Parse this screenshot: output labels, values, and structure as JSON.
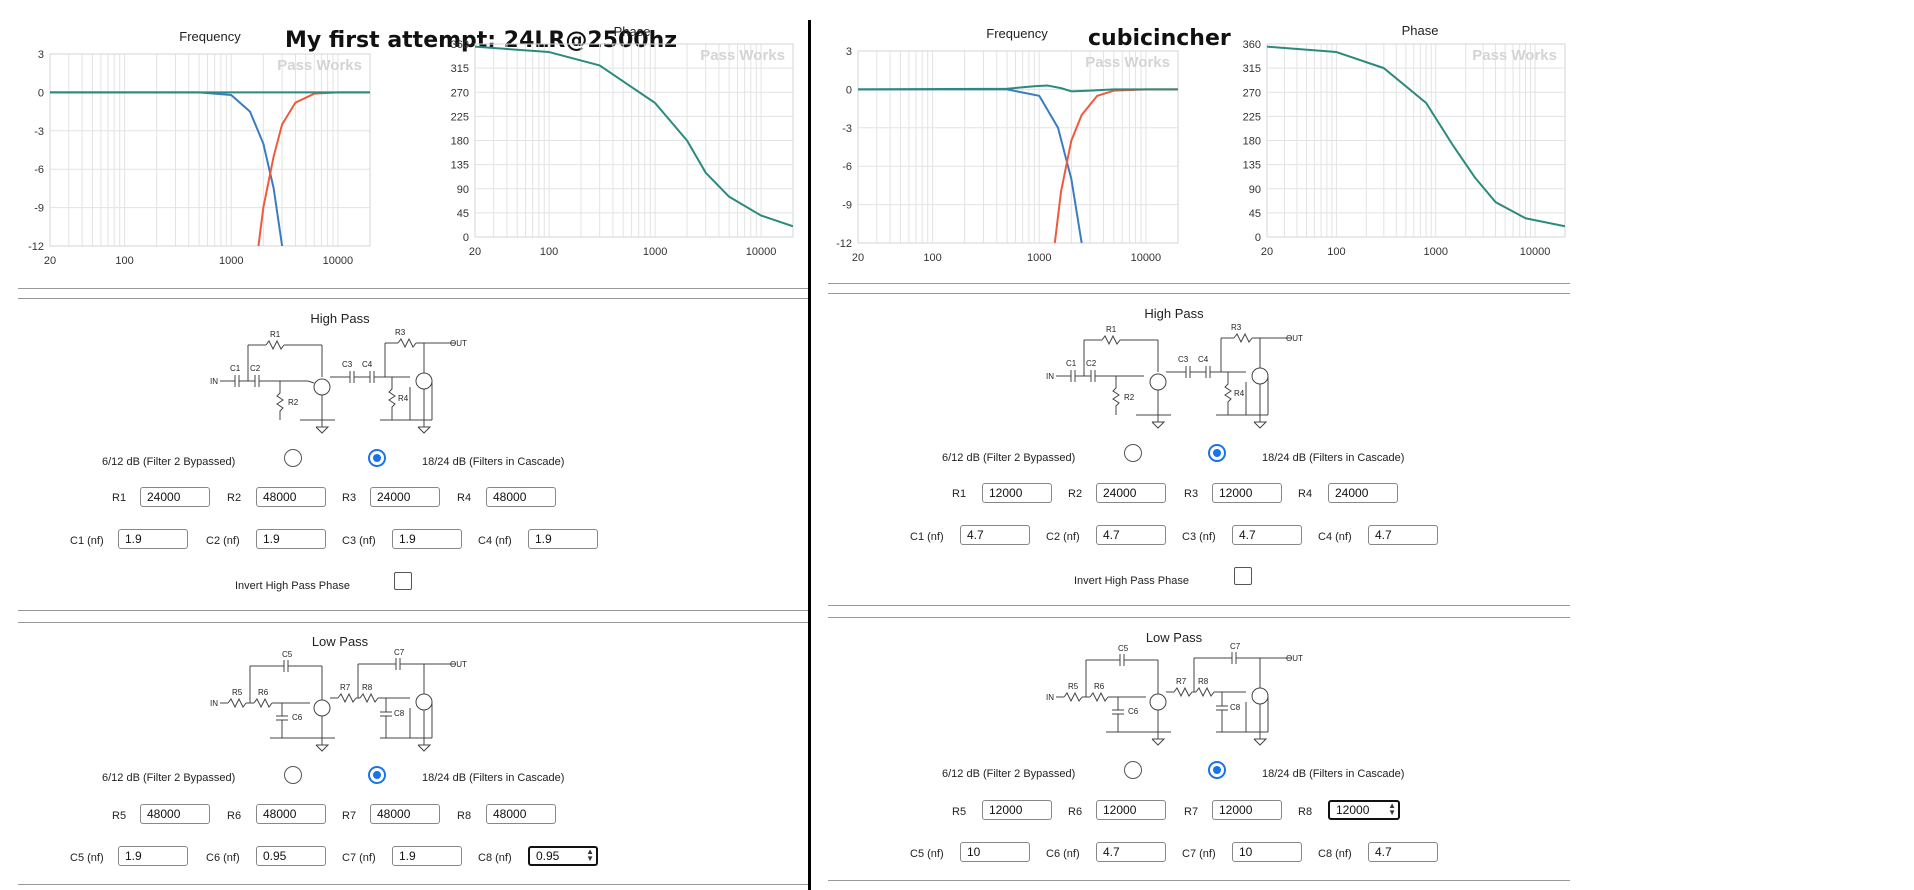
{
  "left": {
    "title": "My first attempt: 24LR@2500hz",
    "freq_title": "Frequency",
    "phase_title": "Phase",
    "watermark": "Pass Works",
    "high_pass": {
      "title": "High Pass",
      "mode_a": "6/12 dB (Filter 2 Bypassed)",
      "mode_b": "18/24 dB (Filters in Cascade)",
      "selected": "mode_b",
      "r_labels": [
        "R1",
        "R2",
        "R3",
        "R4"
      ],
      "r_values": [
        "24000",
        "48000",
        "24000",
        "48000"
      ],
      "c_labels": [
        "C1 (nf)",
        "C2 (nf)",
        "C3 (nf)",
        "C4 (nf)"
      ],
      "c_values": [
        "1.9",
        "1.9",
        "1.9",
        "1.9"
      ],
      "invert_label": "Invert High Pass Phase",
      "invert_checked": false
    },
    "low_pass": {
      "title": "Low Pass",
      "mode_a": "6/12 dB (Filter 2 Bypassed)",
      "mode_b": "18/24 dB (Filters in Cascade)",
      "selected": "mode_b",
      "r_labels": [
        "R5",
        "R6",
        "R7",
        "R8"
      ],
      "r_values": [
        "48000",
        "48000",
        "48000",
        "48000"
      ],
      "c_labels": [
        "C5 (nf)",
        "C6 (nf)",
        "C7 (nf)",
        "C8 (nf)"
      ],
      "c_values": [
        "1.9",
        "0.95",
        "1.9",
        "0.95"
      ],
      "focused_field": "C8"
    }
  },
  "right": {
    "title": "cubicincher",
    "freq_title": "Frequency",
    "phase_title": "Phase",
    "watermark": "Pass Works",
    "high_pass": {
      "title": "High Pass",
      "mode_a": "6/12 dB (Filter 2 Bypassed)",
      "mode_b": "18/24 dB (Filters in Cascade)",
      "selected": "mode_b",
      "r_labels": [
        "R1",
        "R2",
        "R3",
        "R4"
      ],
      "r_values": [
        "12000",
        "24000",
        "12000",
        "24000"
      ],
      "c_labels": [
        "C1 (nf)",
        "C2 (nf)",
        "C3 (nf)",
        "C4 (nf)"
      ],
      "c_values": [
        "4.7",
        "4.7",
        "4.7",
        "4.7"
      ],
      "invert_label": "Invert High Pass Phase",
      "invert_checked": false
    },
    "low_pass": {
      "title": "Low Pass",
      "mode_a": "6/12 dB (Filter 2 Bypassed)",
      "mode_b": "18/24 dB (Filters in Cascade)",
      "selected": "mode_b",
      "r_labels": [
        "R5",
        "R6",
        "R7",
        "R8"
      ],
      "r_values": [
        "12000",
        "12000",
        "12000",
        "12000"
      ],
      "c_labels": [
        "C5 (nf)",
        "C6 (nf)",
        "C7 (nf)",
        "C8 (nf)"
      ],
      "c_values": [
        "10",
        "4.7",
        "10",
        "4.7"
      ],
      "focused_field": "R8"
    }
  },
  "colors": {
    "lowpass": "#3b7cc0",
    "highpass": "#f05a3c",
    "sum": "#2a8a7c",
    "accent": "#1a73e8"
  },
  "chart_data": [
    {
      "type": "line",
      "title": "Frequency",
      "xscale": "log",
      "xlim": [
        20,
        20000
      ],
      "ylim": [
        -12,
        3
      ],
      "xticks": [
        "20",
        "100",
        "1000",
        "10000"
      ],
      "yticks": [
        "3",
        "0",
        "-3",
        "-6",
        "-9",
        "-12"
      ],
      "series": [
        {
          "x": [
            20,
            500,
            1000,
            1500,
            2000,
            2500,
            3000
          ],
          "y": [
            0,
            0,
            -0.2,
            -1.5,
            -4,
            -7.5,
            -12
          ]
        },
        {
          "x": [
            1800,
            2000,
            2500,
            3000,
            4000,
            6000,
            10000,
            20000
          ],
          "y": [
            -12,
            -9,
            -5,
            -2.5,
            -0.8,
            -0.1,
            0,
            0
          ]
        },
        {
          "x": [
            20,
            20000
          ],
          "y": [
            0,
            0
          ]
        }
      ]
    },
    {
      "type": "line",
      "title": "Phase",
      "xscale": "log",
      "xlim": [
        20,
        20000
      ],
      "ylim": [
        0,
        360
      ],
      "xticks": [
        "20",
        "100",
        "1000",
        "10000"
      ],
      "yticks": [
        "360",
        "315",
        "270",
        "225",
        "180",
        "135",
        "90",
        "45",
        "0"
      ],
      "series": [
        {
          "x": [
            20,
            100,
            300,
            1000,
            2000,
            3000,
            5000,
            10000,
            20000
          ],
          "y": [
            355,
            345,
            320,
            250,
            180,
            120,
            75,
            40,
            20
          ]
        }
      ]
    },
    {
      "type": "line",
      "title": "Frequency",
      "xscale": "log",
      "xlim": [
        20,
        20000
      ],
      "ylim": [
        -12,
        3
      ],
      "xticks": [
        "20",
        "100",
        "1000",
        "10000"
      ],
      "yticks": [
        "3",
        "0",
        "-3",
        "-6",
        "-9",
        "-12"
      ],
      "series": [
        {
          "x": [
            20,
            500,
            1000,
            1500,
            2000,
            2500
          ],
          "y": [
            0,
            0,
            -0.5,
            -3,
            -7,
            -12
          ]
        },
        {
          "x": [
            1400,
            1600,
            2000,
            2500,
            3500,
            5000,
            10000,
            20000
          ],
          "y": [
            -12,
            -8,
            -4,
            -2,
            -0.5,
            -0.1,
            0,
            0
          ]
        },
        {
          "x": [
            20,
            500,
            900,
            1200,
            1600,
            2000,
            3000,
            5000,
            20000
          ],
          "y": [
            0,
            0.05,
            0.25,
            0.3,
            0.1,
            -0.15,
            -0.1,
            0,
            0
          ]
        }
      ]
    },
    {
      "type": "line",
      "title": "Phase",
      "xscale": "log",
      "xlim": [
        20,
        20000
      ],
      "ylim": [
        0,
        360
      ],
      "xticks": [
        "20",
        "100",
        "1000",
        "10000"
      ],
      "yticks": [
        "360",
        "315",
        "270",
        "225",
        "180",
        "135",
        "90",
        "45",
        "0"
      ],
      "series": [
        {
          "x": [
            20,
            100,
            300,
            800,
            1500,
            2500,
            4000,
            8000,
            20000
          ],
          "y": [
            355,
            345,
            315,
            250,
            170,
            110,
            65,
            35,
            20
          ]
        }
      ]
    }
  ]
}
